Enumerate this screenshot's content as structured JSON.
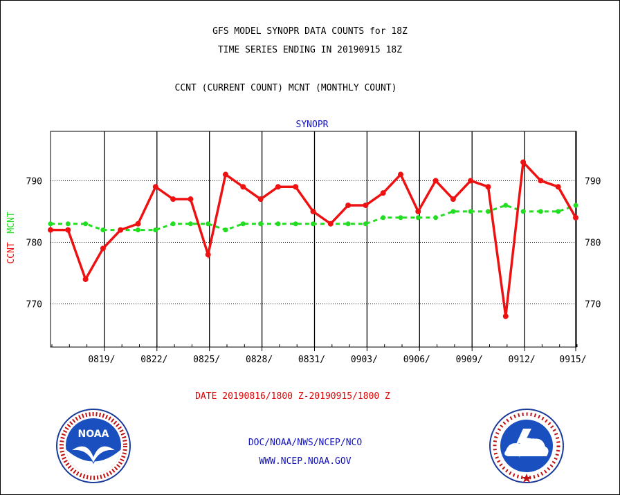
{
  "title": {
    "line1": "GFS MODEL SYNOPR DATA COUNTS for 18Z",
    "line2": "TIME SERIES ENDING IN 20190915 18Z",
    "line3": "CCNT (CURRENT COUNT) MCNT (MONTHLY COUNT)"
  },
  "footer": {
    "date_range": "DATE 20190816/1800 Z-20190915/1800 Z",
    "org": "DOC/NOAA/NWS/NCEP/NCO",
    "url": "WWW.NCEP.NOAA.GOV"
  },
  "colors": {
    "ccnt": "#ee1111",
    "mcnt": "#22dd22",
    "axis_label_title": "#1010c0"
  },
  "logos": {
    "left": "noaa-logo",
    "right": "national-weather-service-logo",
    "left_text": "NOAA"
  },
  "chart_data": {
    "type": "line",
    "panel_title": "SYNOPR",
    "ylabel_ccnt": "CCNT",
    "ylabel_mcnt": "MCNT",
    "ylim": [
      763,
      798
    ],
    "yticks": [
      770,
      780,
      790
    ],
    "grid": "horizontal dotted at ticks, vertical solid every 3 days",
    "x_tick_labels": [
      "0819/",
      "0822/",
      "0825/",
      "0828/",
      "0831/",
      "0903/",
      "0906/",
      "0909/",
      "0912/",
      "0915/"
    ],
    "x": [
      "0816",
      "0817",
      "0818",
      "0819",
      "0820",
      "0821",
      "0822",
      "0823",
      "0824",
      "0825",
      "0826",
      "0827",
      "0828",
      "0829",
      "0830",
      "0831",
      "0901",
      "0902",
      "0903",
      "0904",
      "0905",
      "0906",
      "0907",
      "0908",
      "0909",
      "0910",
      "0911",
      "0912",
      "0913",
      "0914",
      "0915"
    ],
    "series": [
      {
        "name": "CCNT",
        "values": [
          782,
          782,
          774,
          779,
          782,
          783,
          789,
          787,
          787,
          778,
          791,
          789,
          787,
          789,
          789,
          785,
          783,
          786,
          786,
          788,
          791,
          785,
          790,
          787,
          790,
          789,
          768,
          793,
          790,
          789,
          784
        ]
      },
      {
        "name": "MCNT",
        "values": [
          783,
          783,
          783,
          782,
          782,
          782,
          782,
          783,
          783,
          783,
          782,
          783,
          783,
          783,
          783,
          783,
          783,
          783,
          783,
          784,
          784,
          784,
          784,
          785,
          785,
          785,
          786,
          785,
          785,
          785,
          786
        ]
      }
    ]
  }
}
